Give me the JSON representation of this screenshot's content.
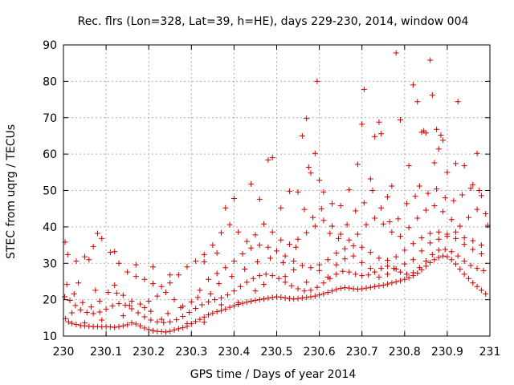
{
  "chart_data": {
    "type": "scatter",
    "title": "Rec. flrs (Lon=328, Lat=39, h=HE), days 229-230, 2014, window 004",
    "xlabel": "GPS time / Days of year 2014",
    "ylabel": "STEC from uqrg / TECUs",
    "xlim": [
      230,
      231
    ],
    "ylim": [
      10,
      90
    ],
    "xticks": [
      230,
      230.1,
      230.2,
      230.3,
      230.4,
      230.5,
      230.6,
      230.7,
      230.8,
      230.9,
      231
    ],
    "xtick_labels": [
      "230",
      "230.1",
      "230.2",
      "230.3",
      "230.4",
      "230.5",
      "230.6",
      "230.7",
      "230.8",
      "230.9",
      "231"
    ],
    "yticks": [
      10,
      20,
      30,
      40,
      50,
      60,
      70,
      80,
      90
    ],
    "ytick_labels": [
      "10",
      "20",
      "30",
      "40",
      "50",
      "60",
      "70",
      "80",
      "90"
    ],
    "grid": true,
    "marker": "+",
    "color": "#cc0000",
    "points": [
      [
        230.005,
        14.8
      ],
      [
        230.012,
        13.9
      ],
      [
        230.02,
        13.5
      ],
      [
        230.03,
        13.2
      ],
      [
        230.04,
        12.9
      ],
      [
        230.05,
        12.8
      ],
      [
        230.06,
        12.7
      ],
      [
        230.07,
        12.6
      ],
      [
        230.08,
        12.6
      ],
      [
        230.09,
        12.5
      ],
      [
        230.1,
        12.6
      ],
      [
        230.11,
        12.5
      ],
      [
        230.12,
        12.4
      ],
      [
        230.13,
        12.6
      ],
      [
        230.14,
        12.8
      ],
      [
        230.15,
        13.1
      ],
      [
        230.16,
        13.6
      ],
      [
        230.17,
        13.3
      ],
      [
        230.18,
        12.8
      ],
      [
        230.19,
        12.2
      ],
      [
        230.2,
        11.8
      ],
      [
        230.21,
        11.5
      ],
      [
        230.22,
        11.3
      ],
      [
        230.23,
        11.2
      ],
      [
        230.24,
        11.1
      ],
      [
        230.25,
        11.3
      ],
      [
        230.26,
        11.7
      ],
      [
        230.27,
        12.0
      ],
      [
        230.28,
        12.3
      ],
      [
        230.29,
        12.7
      ],
      [
        230.3,
        13.4
      ],
      [
        230.31,
        14.0
      ],
      [
        230.32,
        14.6
      ],
      [
        230.33,
        15.2
      ],
      [
        230.34,
        15.8
      ],
      [
        230.35,
        16.3
      ],
      [
        230.36,
        16.7
      ],
      [
        230.37,
        17.0
      ],
      [
        230.38,
        17.4
      ],
      [
        230.39,
        17.9
      ],
      [
        230.4,
        18.3
      ],
      [
        230.41,
        18.7
      ],
      [
        230.42,
        19.0
      ],
      [
        230.43,
        19.3
      ],
      [
        230.44,
        19.6
      ],
      [
        230.45,
        19.8
      ],
      [
        230.46,
        20.0
      ],
      [
        230.47,
        20.2
      ],
      [
        230.48,
        20.4
      ],
      [
        230.49,
        20.6
      ],
      [
        230.5,
        20.8
      ],
      [
        230.51,
        20.7
      ],
      [
        230.52,
        20.5
      ],
      [
        230.53,
        20.3
      ],
      [
        230.54,
        20.2
      ],
      [
        230.55,
        20.3
      ],
      [
        230.56,
        20.5
      ],
      [
        230.57,
        20.6
      ],
      [
        230.58,
        20.8
      ],
      [
        230.59,
        21.0
      ],
      [
        230.6,
        21.3
      ],
      [
        230.61,
        21.6
      ],
      [
        230.62,
        22.0
      ],
      [
        230.63,
        22.4
      ],
      [
        230.64,
        22.8
      ],
      [
        230.65,
        23.1
      ],
      [
        230.66,
        23.3
      ],
      [
        230.67,
        23.2
      ],
      [
        230.68,
        23.0
      ],
      [
        230.69,
        22.9
      ],
      [
        230.7,
        23.0
      ],
      [
        230.71,
        23.2
      ],
      [
        230.72,
        23.4
      ],
      [
        230.73,
        23.6
      ],
      [
        230.74,
        23.8
      ],
      [
        230.75,
        24.0
      ],
      [
        230.76,
        24.3
      ],
      [
        230.77,
        24.6
      ],
      [
        230.78,
        24.9
      ],
      [
        230.79,
        25.2
      ],
      [
        230.8,
        25.6
      ],
      [
        230.81,
        26.0
      ],
      [
        230.82,
        26.6
      ],
      [
        230.83,
        27.3
      ],
      [
        230.84,
        28.2
      ],
      [
        230.85,
        29.2
      ],
      [
        230.86,
        30.2
      ],
      [
        230.87,
        31.0
      ],
      [
        230.88,
        31.6
      ],
      [
        230.89,
        32.0
      ],
      [
        230.9,
        31.8
      ],
      [
        230.91,
        31.0
      ],
      [
        230.92,
        29.8
      ],
      [
        230.93,
        28.4
      ],
      [
        230.94,
        27.0
      ],
      [
        230.95,
        25.8
      ],
      [
        230.96,
        24.6
      ],
      [
        230.97,
        23.6
      ],
      [
        230.98,
        22.6
      ],
      [
        230.99,
        21.6
      ],
      [
        230.003,
        20.8
      ],
      [
        230.015,
        19.8
      ],
      [
        230.028,
        18.4
      ],
      [
        230.04,
        17.2
      ],
      [
        230.055,
        16.5
      ],
      [
        230.07,
        16.2
      ],
      [
        230.085,
        16.6
      ],
      [
        230.1,
        17.4
      ],
      [
        230.115,
        18.3
      ],
      [
        230.13,
        18.9
      ],
      [
        230.145,
        18.5
      ],
      [
        230.16,
        17.5
      ],
      [
        230.175,
        16.4
      ],
      [
        230.19,
        15.3
      ],
      [
        230.205,
        14.4
      ],
      [
        230.22,
        13.9
      ],
      [
        230.235,
        13.7
      ],
      [
        230.25,
        13.9
      ],
      [
        230.265,
        14.5
      ],
      [
        230.28,
        15.4
      ],
      [
        230.295,
        16.5
      ],
      [
        230.31,
        17.6
      ],
      [
        230.325,
        18.6
      ],
      [
        230.34,
        19.4
      ],
      [
        230.355,
        20.0
      ],
      [
        230.37,
        20.5
      ],
      [
        230.385,
        21.3
      ],
      [
        230.4,
        22.4
      ],
      [
        230.415,
        23.6
      ],
      [
        230.43,
        24.8
      ],
      [
        230.445,
        25.8
      ],
      [
        230.46,
        26.6
      ],
      [
        230.475,
        27.0
      ],
      [
        230.49,
        26.6
      ],
      [
        230.505,
        25.8
      ],
      [
        230.52,
        24.8
      ],
      [
        230.535,
        23.8
      ],
      [
        230.55,
        23.0
      ],
      [
        230.565,
        22.4
      ],
      [
        230.58,
        22.6
      ],
      [
        230.595,
        23.4
      ],
      [
        230.61,
        24.6
      ],
      [
        230.625,
        25.8
      ],
      [
        230.64,
        27.0
      ],
      [
        230.655,
        27.8
      ],
      [
        230.67,
        27.6
      ],
      [
        230.685,
        27.0
      ],
      [
        230.7,
        26.6
      ],
      [
        230.715,
        26.8
      ],
      [
        230.73,
        27.6
      ],
      [
        230.745,
        28.6
      ],
      [
        230.76,
        29.2
      ],
      [
        230.775,
        28.6
      ],
      [
        230.79,
        27.6
      ],
      [
        230.805,
        27.0
      ],
      [
        230.82,
        27.4
      ],
      [
        230.835,
        28.8
      ],
      [
        230.85,
        30.6
      ],
      [
        230.865,
        32.4
      ],
      [
        230.88,
        33.6
      ],
      [
        230.895,
        33.8
      ],
      [
        230.91,
        33.2
      ],
      [
        230.925,
        32.0
      ],
      [
        230.94,
        30.6
      ],
      [
        230.955,
        29.4
      ],
      [
        230.97,
        28.6
      ],
      [
        230.985,
        28.0
      ],
      [
        230.008,
        24.2
      ],
      [
        230.025,
        21.6
      ],
      [
        230.045,
        19.2
      ],
      [
        230.065,
        18.0
      ],
      [
        230.085,
        19.6
      ],
      [
        230.105,
        22.0
      ],
      [
        230.12,
        24.0
      ],
      [
        230.14,
        21.2
      ],
      [
        230.16,
        19.6
      ],
      [
        230.18,
        18.8
      ],
      [
        230.2,
        19.6
      ],
      [
        230.22,
        21.0
      ],
      [
        230.24,
        22.0
      ],
      [
        230.26,
        20.0
      ],
      [
        230.28,
        18.2
      ],
      [
        230.3,
        19.4
      ],
      [
        230.32,
        22.6
      ],
      [
        230.34,
        25.6
      ],
      [
        230.36,
        27.2
      ],
      [
        230.38,
        28.8
      ],
      [
        230.4,
        30.6
      ],
      [
        230.42,
        32.6
      ],
      [
        230.44,
        34.2
      ],
      [
        230.46,
        35.0
      ],
      [
        230.48,
        34.4
      ],
      [
        230.5,
        33.4
      ],
      [
        230.52,
        32.0
      ],
      [
        230.54,
        30.6
      ],
      [
        230.56,
        29.4
      ],
      [
        230.58,
        28.8
      ],
      [
        230.6,
        29.6
      ],
      [
        230.62,
        31.0
      ],
      [
        230.64,
        32.8
      ],
      [
        230.66,
        34.0
      ],
      [
        230.68,
        34.8
      ],
      [
        230.7,
        34.4
      ],
      [
        230.72,
        33.0
      ],
      [
        230.74,
        31.4
      ],
      [
        230.76,
        30.8
      ],
      [
        230.78,
        31.8
      ],
      [
        230.8,
        33.6
      ],
      [
        230.82,
        35.4
      ],
      [
        230.84,
        37.0
      ],
      [
        230.86,
        38.2
      ],
      [
        230.88,
        38.6
      ],
      [
        230.9,
        38.0
      ],
      [
        230.92,
        36.8
      ],
      [
        230.94,
        35.2
      ],
      [
        230.96,
        33.8
      ],
      [
        230.98,
        32.6
      ],
      [
        230.01,
        32.4
      ],
      [
        230.03,
        30.6
      ],
      [
        230.05,
        31.8
      ],
      [
        230.07,
        34.6
      ],
      [
        230.09,
        36.8
      ],
      [
        230.11,
        33.0
      ],
      [
        230.13,
        30.0
      ],
      [
        230.15,
        27.6
      ],
      [
        230.17,
        26.4
      ],
      [
        230.19,
        25.6
      ],
      [
        230.21,
        24.4
      ],
      [
        230.23,
        23.6
      ],
      [
        230.25,
        24.6
      ],
      [
        230.27,
        26.8
      ],
      [
        230.29,
        29.0
      ],
      [
        230.31,
        30.6
      ],
      [
        230.33,
        32.4
      ],
      [
        230.35,
        35.0
      ],
      [
        230.37,
        38.4
      ],
      [
        230.39,
        40.6
      ],
      [
        230.41,
        38.6
      ],
      [
        230.43,
        36.0
      ],
      [
        230.45,
        37.8
      ],
      [
        230.47,
        40.8
      ],
      [
        230.49,
        38.6
      ],
      [
        230.51,
        36.4
      ],
      [
        230.53,
        35.2
      ],
      [
        230.55,
        36.6
      ],
      [
        230.57,
        38.4
      ],
      [
        230.59,
        40.2
      ],
      [
        230.61,
        41.8
      ],
      [
        230.63,
        40.2
      ],
      [
        230.65,
        38.0
      ],
      [
        230.67,
        36.4
      ],
      [
        230.69,
        38.0
      ],
      [
        230.71,
        40.6
      ],
      [
        230.73,
        42.4
      ],
      [
        230.75,
        40.8
      ],
      [
        230.77,
        38.6
      ],
      [
        230.79,
        37.4
      ],
      [
        230.81,
        39.8
      ],
      [
        230.83,
        42.4
      ],
      [
        230.85,
        44.6
      ],
      [
        230.87,
        45.8
      ],
      [
        230.89,
        44.2
      ],
      [
        230.91,
        42.0
      ],
      [
        230.93,
        40.2
      ],
      [
        230.95,
        42.6
      ],
      [
        230.97,
        44.8
      ],
      [
        230.99,
        43.6
      ],
      [
        230.004,
        35.8
      ],
      [
        230.06,
        31.0
      ],
      [
        230.08,
        38.2
      ],
      [
        230.12,
        33.2
      ],
      [
        230.17,
        29.6
      ],
      [
        230.21,
        29.0
      ],
      [
        230.25,
        26.8
      ],
      [
        230.33,
        30.4
      ],
      [
        230.36,
        32.8
      ],
      [
        230.38,
        45.2
      ],
      [
        230.4,
        47.8
      ],
      [
        230.44,
        51.8
      ],
      [
        230.46,
        47.6
      ],
      [
        230.48,
        58.4
      ],
      [
        230.49,
        59.0
      ],
      [
        230.51,
        45.2
      ],
      [
        230.53,
        49.8
      ],
      [
        230.55,
        49.6
      ],
      [
        230.56,
        65.0
      ],
      [
        230.57,
        69.8
      ],
      [
        230.575,
        56.4
      ],
      [
        230.58,
        54.8
      ],
      [
        230.59,
        60.2
      ],
      [
        230.595,
        80.0
      ],
      [
        230.6,
        52.8
      ],
      [
        230.61,
        49.6
      ],
      [
        230.63,
        46.4
      ],
      [
        230.65,
        45.8
      ],
      [
        230.67,
        50.2
      ],
      [
        230.69,
        57.2
      ],
      [
        230.7,
        68.2
      ],
      [
        230.705,
        77.8
      ],
      [
        230.72,
        53.2
      ],
      [
        230.73,
        64.8
      ],
      [
        230.74,
        68.8
      ],
      [
        230.745,
        65.6
      ],
      [
        230.76,
        48.2
      ],
      [
        230.77,
        51.2
      ],
      [
        230.78,
        87.8
      ],
      [
        230.79,
        69.4
      ],
      [
        230.81,
        56.8
      ],
      [
        230.82,
        79.0
      ],
      [
        230.83,
        74.4
      ],
      [
        230.84,
        66.0
      ],
      [
        230.845,
        66.4
      ],
      [
        230.85,
        65.8
      ],
      [
        230.86,
        85.8
      ],
      [
        230.865,
        76.2
      ],
      [
        230.87,
        57.6
      ],
      [
        230.875,
        66.8
      ],
      [
        230.88,
        61.4
      ],
      [
        230.885,
        65.2
      ],
      [
        230.89,
        63.8
      ],
      [
        230.9,
        55.0
      ],
      [
        230.92,
        57.4
      ],
      [
        230.925,
        74.4
      ],
      [
        230.94,
        56.8
      ],
      [
        230.96,
        51.6
      ],
      [
        230.97,
        60.2
      ],
      [
        230.98,
        48.6
      ],
      [
        230.995,
        40.4
      ],
      [
        230.02,
        16.4
      ],
      [
        230.05,
        13.6
      ],
      [
        230.09,
        14.4
      ],
      [
        230.14,
        15.6
      ],
      [
        230.19,
        17.8
      ],
      [
        230.23,
        14.6
      ],
      [
        230.29,
        13.4
      ],
      [
        230.33,
        13.8
      ],
      [
        230.37,
        18.6
      ],
      [
        230.41,
        19.2
      ],
      [
        230.45,
        22.4
      ],
      [
        230.47,
        24.2
      ],
      [
        230.52,
        26.4
      ],
      [
        230.54,
        28.2
      ],
      [
        230.57,
        24.8
      ],
      [
        230.6,
        28.0
      ],
      [
        230.62,
        26.2
      ],
      [
        230.64,
        29.6
      ],
      [
        230.66,
        31.2
      ],
      [
        230.68,
        32.0
      ],
      [
        230.7,
        30.2
      ],
      [
        230.72,
        28.6
      ],
      [
        230.74,
        26.2
      ],
      [
        230.76,
        27.0
      ],
      [
        230.78,
        28.4
      ],
      [
        230.8,
        29.8
      ],
      [
        230.82,
        31.0
      ],
      [
        230.84,
        33.4
      ],
      [
        230.86,
        35.6
      ],
      [
        230.88,
        36.6
      ],
      [
        230.9,
        37.4
      ],
      [
        230.92,
        38.6
      ],
      [
        230.94,
        37.0
      ],
      [
        230.96,
        36.2
      ],
      [
        230.98,
        35.0
      ],
      [
        230.035,
        24.6
      ],
      [
        230.075,
        22.6
      ],
      [
        230.125,
        21.8
      ],
      [
        230.155,
        18.4
      ],
      [
        230.205,
        16.8
      ],
      [
        230.245,
        16.2
      ],
      [
        230.275,
        17.8
      ],
      [
        230.315,
        20.6
      ],
      [
        230.345,
        21.6
      ],
      [
        230.365,
        24.4
      ],
      [
        230.395,
        26.4
      ],
      [
        230.425,
        28.4
      ],
      [
        230.455,
        30.4
      ],
      [
        230.485,
        31.4
      ],
      [
        230.515,
        30.2
      ],
      [
        230.545,
        34.4
      ],
      [
        230.565,
        44.8
      ],
      [
        230.585,
        42.6
      ],
      [
        230.605,
        45.0
      ],
      [
        230.625,
        38.2
      ],
      [
        230.645,
        36.8
      ],
      [
        230.665,
        40.6
      ],
      [
        230.685,
        44.4
      ],
      [
        230.705,
        46.6
      ],
      [
        230.725,
        50.0
      ],
      [
        230.745,
        45.2
      ],
      [
        230.765,
        41.4
      ],
      [
        230.785,
        42.2
      ],
      [
        230.805,
        46.4
      ],
      [
        230.825,
        48.4
      ],
      [
        230.835,
        51.2
      ],
      [
        230.855,
        49.2
      ],
      [
        230.875,
        50.4
      ],
      [
        230.895,
        48.0
      ],
      [
        230.915,
        47.2
      ],
      [
        230.935,
        48.8
      ],
      [
        230.955,
        50.6
      ],
      [
        230.975,
        50.0
      ]
    ]
  }
}
